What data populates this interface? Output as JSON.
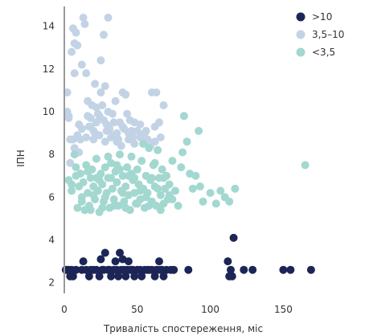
{
  "chart_data": {
    "type": "scatter",
    "xlabel": "Тривалість спостереження, міс",
    "ylabel": "ІПН",
    "xlim": [
      0,
      190
    ],
    "ylim": [
      1.5,
      15
    ],
    "xticks": [
      0,
      50,
      100,
      150
    ],
    "yticks": [
      2,
      4,
      6,
      8,
      10,
      12,
      14
    ],
    "legend_position": "top-right",
    "grid": false,
    "series": [
      {
        "name": ">10",
        "color": "#1c2555",
        "points": [
          [
            1,
            2.6
          ],
          [
            3,
            2.6
          ],
          [
            4,
            2.3
          ],
          [
            5,
            2.6
          ],
          [
            8,
            2.6
          ],
          [
            12,
            2.6
          ],
          [
            13,
            3.0
          ],
          [
            15,
            2.6
          ],
          [
            17,
            2.3
          ],
          [
            20,
            2.6
          ],
          [
            22,
            2.6
          ],
          [
            24,
            2.3
          ],
          [
            25,
            3.1
          ],
          [
            26,
            2.6
          ],
          [
            28,
            3.4
          ],
          [
            30,
            2.6
          ],
          [
            32,
            2.3
          ],
          [
            34,
            2.6
          ],
          [
            35,
            3.0
          ],
          [
            36,
            2.6
          ],
          [
            37,
            2.3
          ],
          [
            38,
            3.4
          ],
          [
            39,
            2.6
          ],
          [
            40,
            3.1
          ],
          [
            41,
            2.6
          ],
          [
            42,
            2.3
          ],
          [
            43,
            2.6
          ],
          [
            44,
            3.0
          ],
          [
            45,
            2.6
          ],
          [
            47,
            2.6
          ],
          [
            48,
            2.3
          ],
          [
            50,
            2.6
          ],
          [
            52,
            2.6
          ],
          [
            53,
            2.3
          ],
          [
            55,
            2.6
          ],
          [
            57,
            2.6
          ],
          [
            60,
            2.6
          ],
          [
            62,
            2.3
          ],
          [
            64,
            2.6
          ],
          [
            65,
            3.0
          ],
          [
            67,
            2.6
          ],
          [
            68,
            2.3
          ],
          [
            70,
            2.6
          ],
          [
            73,
            2.6
          ],
          [
            75,
            2.6
          ],
          [
            85,
            2.6
          ],
          [
            112,
            3.0
          ],
          [
            113,
            2.3
          ],
          [
            115,
            2.3
          ],
          [
            116,
            4.1
          ],
          [
            123,
            2.6
          ],
          [
            129,
            2.6
          ],
          [
            150,
            2.6
          ],
          [
            155,
            2.6
          ],
          [
            169,
            2.6
          ],
          [
            2,
            2.6
          ],
          [
            6,
            2.3
          ],
          [
            18,
            2.6
          ],
          [
            27,
            2.6
          ],
          [
            31,
            2.6
          ],
          [
            46,
            2.6
          ],
          [
            58,
            2.6
          ],
          [
            63,
            2.6
          ],
          [
            66,
            2.6
          ],
          [
            114,
            2.6
          ]
        ]
      },
      {
        "name": "3,5–10",
        "color": "#c3d3e6",
        "points": [
          [
            2,
            10.9
          ],
          [
            2,
            10.0
          ],
          [
            3,
            9.8
          ],
          [
            4,
            8.7
          ],
          [
            5,
            12.8
          ],
          [
            6,
            13.9
          ],
          [
            7,
            13.2
          ],
          [
            7,
            11.8
          ],
          [
            8,
            13.7
          ],
          [
            9,
            13.1
          ],
          [
            10,
            9.4
          ],
          [
            11,
            8.7
          ],
          [
            12,
            12.2
          ],
          [
            13,
            14.4
          ],
          [
            14,
            14.1
          ],
          [
            15,
            11.8
          ],
          [
            16,
            10.5
          ],
          [
            16,
            9.8
          ],
          [
            17,
            9.3
          ],
          [
            18,
            9.7
          ],
          [
            19,
            10.3
          ],
          [
            20,
            9.1
          ],
          [
            20,
            8.7
          ],
          [
            21,
            11.3
          ],
          [
            22,
            10.2
          ],
          [
            22,
            9.5
          ],
          [
            23,
            9.9
          ],
          [
            24,
            8.9
          ],
          [
            25,
            12.4
          ],
          [
            25,
            10.9
          ],
          [
            26,
            10.3
          ],
          [
            27,
            9.6
          ],
          [
            27,
            13.6
          ],
          [
            28,
            11.2
          ],
          [
            28,
            8.6
          ],
          [
            29,
            9.4
          ],
          [
            30,
            14.4
          ],
          [
            30,
            10.0
          ],
          [
            31,
            9.2
          ],
          [
            32,
            8.8
          ],
          [
            33,
            9.9
          ],
          [
            34,
            9.5
          ],
          [
            35,
            10.5
          ],
          [
            36,
            9.0
          ],
          [
            37,
            8.7
          ],
          [
            38,
            9.5
          ],
          [
            39,
            8.4
          ],
          [
            40,
            10.9
          ],
          [
            41,
            9.2
          ],
          [
            42,
            10.8
          ],
          [
            43,
            9.9
          ],
          [
            44,
            8.7
          ],
          [
            45,
            9.6
          ],
          [
            46,
            9.1
          ],
          [
            47,
            8.8
          ],
          [
            48,
            9.5
          ],
          [
            50,
            9.1
          ],
          [
            52,
            9.4
          ],
          [
            55,
            9.0
          ],
          [
            57,
            8.7
          ],
          [
            60,
            10.9
          ],
          [
            62,
            9.3
          ],
          [
            63,
            10.9
          ],
          [
            65,
            9.5
          ],
          [
            66,
            8.8
          ],
          [
            68,
            10.3
          ],
          [
            3,
            9.7
          ],
          [
            6,
            8.7
          ],
          [
            9,
            8.9
          ],
          [
            12,
            9.2
          ],
          [
            15,
            8.8
          ],
          [
            18,
            9.3
          ],
          [
            21,
            9.0
          ],
          [
            24,
            9.8
          ],
          [
            29,
            9.1
          ],
          [
            33,
            8.9
          ],
          [
            36,
            8.6
          ],
          [
            40,
            9.3
          ],
          [
            44,
            9.0
          ],
          [
            48,
            8.5
          ],
          [
            52,
            8.8
          ],
          [
            56,
            9.1
          ],
          [
            59,
            8.4
          ],
          [
            62,
            8.6
          ],
          [
            4,
            7.6
          ],
          [
            7,
            8.3
          ],
          [
            10,
            8.1
          ]
        ]
      },
      {
        "name": "<3,5",
        "color": "#a3d8d0",
        "points": [
          [
            3,
            6.8
          ],
          [
            5,
            6.3
          ],
          [
            7,
            8.0
          ],
          [
            8,
            7.4
          ],
          [
            9,
            5.5
          ],
          [
            10,
            6.5
          ],
          [
            11,
            7.1
          ],
          [
            12,
            5.8
          ],
          [
            13,
            6.7
          ],
          [
            14,
            5.4
          ],
          [
            15,
            7.5
          ],
          [
            16,
            6.2
          ],
          [
            17,
            5.6
          ],
          [
            18,
            6.9
          ],
          [
            19,
            7.3
          ],
          [
            20,
            6.5
          ],
          [
            21,
            5.9
          ],
          [
            22,
            7.8
          ],
          [
            23,
            6.3
          ],
          [
            24,
            5.3
          ],
          [
            25,
            7.1
          ],
          [
            26,
            6.6
          ],
          [
            27,
            5.8
          ],
          [
            28,
            7.4
          ],
          [
            29,
            6.2
          ],
          [
            30,
            6.9
          ],
          [
            31,
            5.5
          ],
          [
            32,
            7.6
          ],
          [
            33,
            6.4
          ],
          [
            34,
            5.9
          ],
          [
            35,
            7.2
          ],
          [
            36,
            6.7
          ],
          [
            37,
            5.6
          ],
          [
            38,
            8.0
          ],
          [
            39,
            6.3
          ],
          [
            40,
            7.0
          ],
          [
            41,
            5.8
          ],
          [
            42,
            6.5
          ],
          [
            43,
            7.4
          ],
          [
            44,
            6.1
          ],
          [
            45,
            5.4
          ],
          [
            46,
            7.9
          ],
          [
            47,
            6.8
          ],
          [
            48,
            6.2
          ],
          [
            49,
            5.7
          ],
          [
            50,
            7.3
          ],
          [
            51,
            6.6
          ],
          [
            52,
            5.9
          ],
          [
            53,
            7.7
          ],
          [
            54,
            6.4
          ],
          [
            55,
            5.5
          ],
          [
            56,
            7.0
          ],
          [
            57,
            6.2
          ],
          [
            58,
            8.3
          ],
          [
            59,
            6.8
          ],
          [
            60,
            5.8
          ],
          [
            61,
            7.5
          ],
          [
            62,
            6.5
          ],
          [
            63,
            5.6
          ],
          [
            64,
            8.2
          ],
          [
            65,
            6.9
          ],
          [
            66,
            6.1
          ],
          [
            67,
            7.3
          ],
          [
            68,
            5.7
          ],
          [
            69,
            6.4
          ],
          [
            70,
            7.0
          ],
          [
            71,
            5.9
          ],
          [
            72,
            6.6
          ],
          [
            74,
            7.7
          ],
          [
            76,
            6.3
          ],
          [
            78,
            5.6
          ],
          [
            80,
            7.4
          ],
          [
            81,
            8.1
          ],
          [
            82,
            9.8
          ],
          [
            84,
            8.6
          ],
          [
            86,
            7.1
          ],
          [
            88,
            6.4
          ],
          [
            90,
            7.0
          ],
          [
            92,
            9.1
          ],
          [
            93,
            6.5
          ],
          [
            95,
            5.8
          ],
          [
            100,
            6.2
          ],
          [
            104,
            5.7
          ],
          [
            107,
            6.3
          ],
          [
            110,
            6.0
          ],
          [
            113,
            5.8
          ],
          [
            117,
            6.4
          ],
          [
            165,
            7.5
          ],
          [
            5,
            6.6
          ],
          [
            8,
            7.0
          ],
          [
            12,
            6.0
          ],
          [
            16,
            7.2
          ],
          [
            20,
            6.1
          ],
          [
            24,
            6.8
          ],
          [
            28,
            6.0
          ],
          [
            32,
            6.9
          ],
          [
            36,
            7.5
          ],
          [
            40,
            6.2
          ],
          [
            44,
            7.0
          ],
          [
            48,
            6.9
          ],
          [
            52,
            6.3
          ],
          [
            56,
            6.0
          ],
          [
            60,
            6.9
          ],
          [
            64,
            6.4
          ],
          [
            68,
            6.9
          ],
          [
            72,
            6.1
          ],
          [
            18,
            5.4
          ],
          [
            26,
            5.5
          ],
          [
            34,
            5.6
          ],
          [
            42,
            5.5
          ],
          [
            50,
            5.7
          ],
          [
            58,
            5.6
          ],
          [
            66,
            5.4
          ],
          [
            74,
            5.9
          ],
          [
            30,
            7.9
          ],
          [
            46,
            7.1
          ],
          [
            62,
            7.6
          ],
          [
            54,
            8.5
          ],
          [
            38,
            7.3
          ],
          [
            22,
            6.9
          ]
        ]
      }
    ]
  }
}
